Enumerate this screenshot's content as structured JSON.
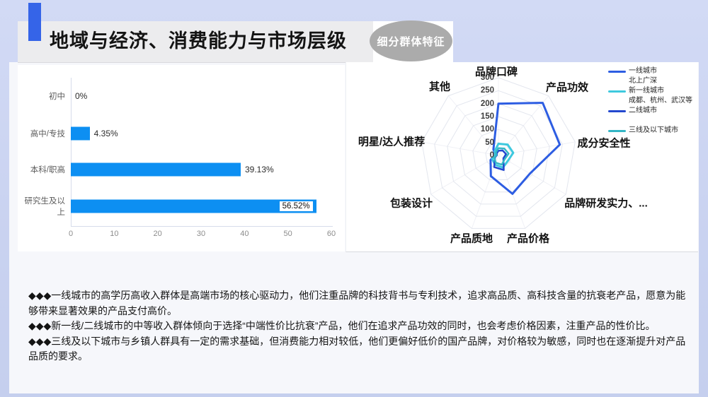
{
  "page": {
    "background": "#c9d2f0",
    "slide_background": "#f6f7fb"
  },
  "header": {
    "title": "地域与经济、消费能力与市场层级",
    "badge": "细分群体特征",
    "accent_color": "#3564e8",
    "title_bar_color": "#ececee",
    "badge_color": "#ababab"
  },
  "chart_data": [
    {
      "type": "bar",
      "orientation": "horizontal",
      "categories": [
        "初中",
        "高中/专技",
        "本科/职高",
        "研究生及以上"
      ],
      "values": [
        0,
        4.35,
        39.13,
        56.52
      ],
      "value_labels": [
        "0%",
        "4.35%",
        "39.13%",
        "56.52%"
      ],
      "highlight_index": 3,
      "xlim": [
        0,
        60
      ],
      "xticks": [
        0,
        10,
        20,
        30,
        40,
        50,
        60
      ],
      "bar_color": "#0d8ff2",
      "title": "",
      "xlabel": "",
      "ylabel": "",
      "grid": false
    },
    {
      "type": "radar",
      "categories": [
        "品牌口碑",
        "产品功效",
        "成分安全性",
        "品牌研发实力、...",
        "产品价格",
        "产品质地",
        "包装设计",
        "明星/达人推荐",
        "其他"
      ],
      "rlim": [
        0,
        300
      ],
      "rticks": [
        0,
        50,
        100,
        150,
        200,
        250,
        300
      ],
      "series": [
        {
          "name": "一线城市\n北上广深",
          "color": "#2d5de2",
          "values": [
            200,
            265,
            240,
            140,
            158,
            85,
            35,
            12,
            30
          ]
        },
        {
          "name": "新一线城市\n成都、杭州、武汉等",
          "color": "#3ec9de",
          "values": [
            45,
            55,
            58,
            42,
            50,
            38,
            28,
            12,
            22
          ]
        },
        {
          "name": "二线城市",
          "color": "#2348cf",
          "values": [
            18,
            25,
            30,
            22,
            60,
            48,
            15,
            6,
            10
          ]
        },
        {
          "name": "三线及以下城市",
          "color": "#33b6c5",
          "values": [
            28,
            35,
            40,
            28,
            38,
            30,
            18,
            8,
            15
          ]
        }
      ],
      "legend_position": "top-right",
      "grid": true
    }
  ],
  "notes": [
    "◆◆◆一线城市的高学历高收入群体是高端市场的核心驱动力，他们注重品牌的科技背书与专利技术，追求高品质、高科技含量的抗衰老产品，愿意为能够带来显著效果的产品支付高价。",
    "◆◆◆新一线/二线城市的中等收入群体倾向于选择“中端性价比抗衰”产品，他们在追求产品功效的同时，也会考虑价格因素，注重产品的性价比。",
    "◆◆◆三线及以下城市与乡镇人群具有一定的需求基础，但消费能力相对较低，他们更偏好低价的国产品牌，对价格较为敏感，同时也在逐渐提升对产品品质的要求。"
  ]
}
